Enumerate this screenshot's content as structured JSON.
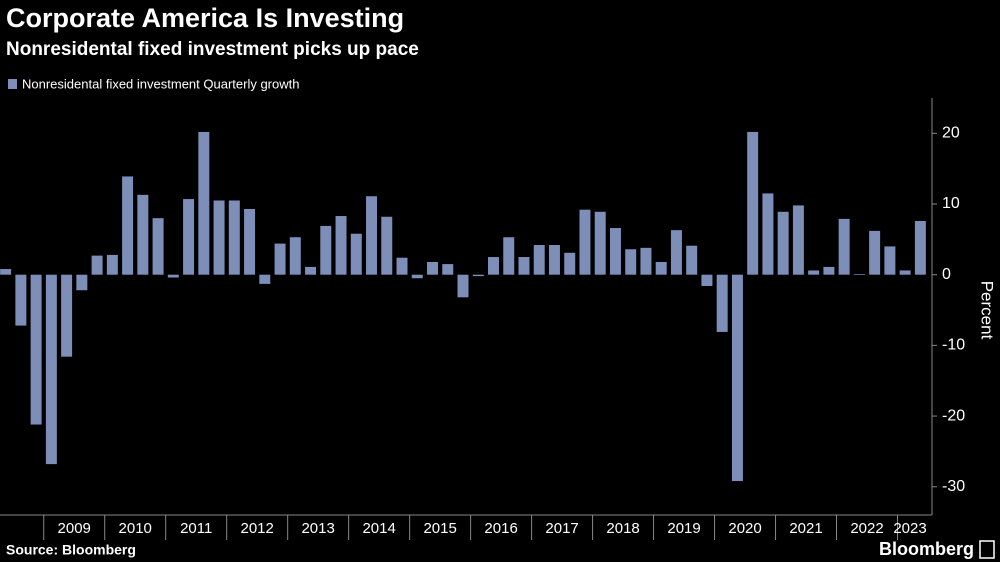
{
  "chart_data": {
    "type": "bar",
    "title": "Corporate America Is Investing",
    "subtitle": "Nonresidental fixed investment picks up pace",
    "series": [
      {
        "name": "Nonresidental fixed investment Quarterly growth",
        "color": "#7d8fb8",
        "values": [
          0.8,
          -7.2,
          -21.2,
          -26.8,
          -11.6,
          -2.2,
          2.7,
          2.8,
          13.9,
          11.3,
          8.0,
          -0.4,
          10.7,
          20.2,
          10.5,
          10.5,
          9.3,
          -1.3,
          4.4,
          5.3,
          1.1,
          6.9,
          8.3,
          5.8,
          11.1,
          8.2,
          2.4,
          -0.5,
          1.8,
          1.5,
          -3.2,
          -0.2,
          2.5,
          5.3,
          2.5,
          4.2,
          4.2,
          3.1,
          9.2,
          8.9,
          6.6,
          3.6,
          3.8,
          1.8,
          6.3,
          4.1,
          -1.6,
          -8.1,
          -29.2,
          20.2,
          11.5,
          8.9,
          9.8,
          0.6,
          1.1,
          7.9,
          0.1,
          6.2,
          4.0,
          0.6,
          7.6
        ]
      }
    ],
    "categories": [
      null,
      null,
      null,
      "2009",
      null,
      null,
      null,
      "2010",
      null,
      null,
      null,
      "2011",
      null,
      null,
      null,
      "2012",
      null,
      null,
      null,
      "2013",
      null,
      null,
      null,
      "2014",
      null,
      null,
      null,
      "2015",
      null,
      null,
      null,
      "2016",
      null,
      null,
      null,
      "2017",
      null,
      null,
      null,
      "2018",
      null,
      null,
      null,
      "2019",
      null,
      null,
      null,
      "2020",
      null,
      null,
      null,
      "2021",
      null,
      null,
      null,
      "2022",
      null,
      null,
      null,
      "2023",
      null
    ],
    "ylabel": "Percent",
    "ylim": [
      -34,
      25
    ],
    "yticks": [
      -30,
      -20,
      -10,
      0,
      10,
      20
    ],
    "source": "Source: Bloomberg",
    "logo": "Bloomberg"
  }
}
